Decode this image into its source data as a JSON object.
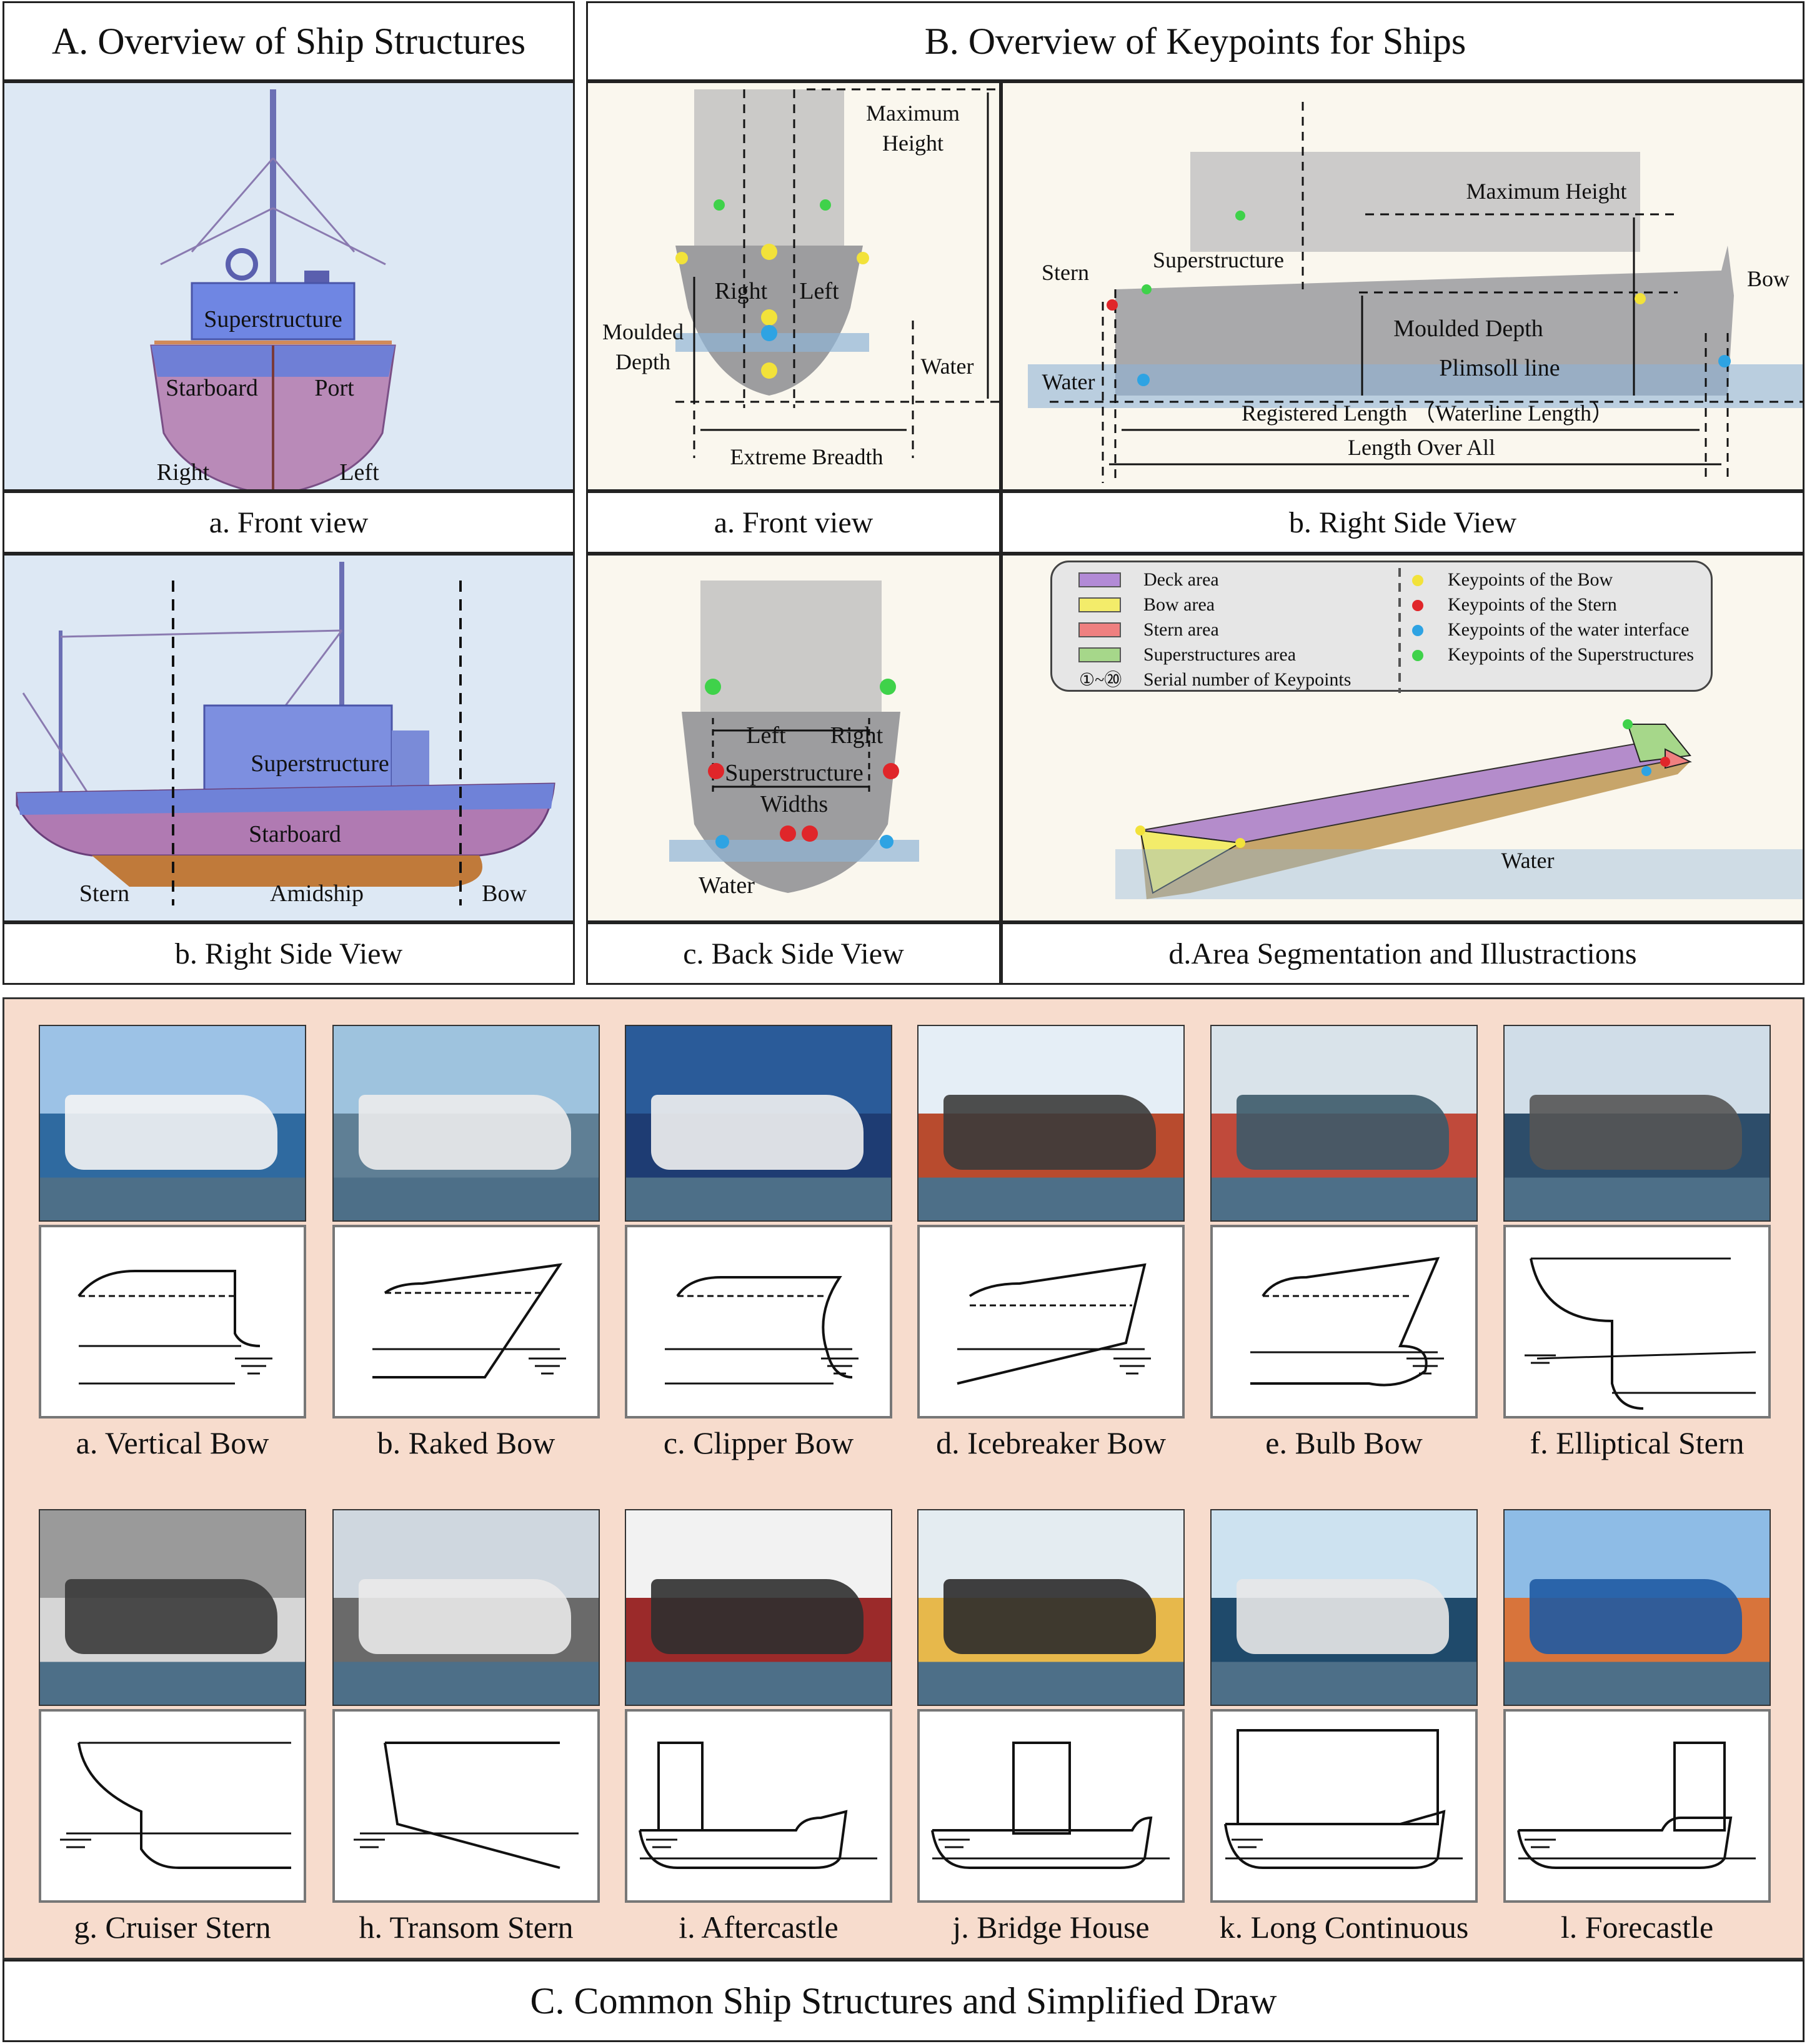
{
  "section_a": {
    "title": "A. Overview of Ship Structures",
    "front": {
      "superstructure": "Superstructure",
      "starboard": "Starboard",
      "port": "Port",
      "right": "Right",
      "left": "Left",
      "caption": "a. Front view"
    },
    "side": {
      "superstructure": "Superstructure",
      "starboard": "Starboard",
      "stern": "Stern",
      "amidship": "Amidship",
      "bow": "Bow",
      "caption": "b. Right Side View"
    }
  },
  "section_b": {
    "title": "B. Overview of Keypoints for Ships",
    "front": {
      "max_height": "Maximum",
      "max_height2": "Height",
      "right": "Right",
      "left": "Left",
      "moulded": "Moulded",
      "depth": "Depth",
      "water": "Water",
      "breadth": "Extreme Breadth",
      "caption": "a. Front view"
    },
    "side": {
      "max_height": "Maximum Height",
      "superstructure": "Superstructure",
      "stern": "Stern",
      "bow": "Bow",
      "moulded": "Moulded Depth",
      "plimsoll": "Plimsoll line",
      "water": "Water",
      "registered": "Registered Length （Waterline Length）",
      "loa": "Length Over All",
      "caption": "b. Right Side View"
    },
    "back": {
      "left": "Left",
      "right": "Right",
      "sw1": "Superstructure",
      "sw2": "Widths",
      "water": "Water",
      "caption": "c. Back Side View"
    },
    "area": {
      "legend": [
        "Deck area",
        "Bow area",
        "Stern area",
        "Superstructures area",
        "Serial number of Keypoints"
      ],
      "legend_serial": "①~⑳",
      "legend_kp": [
        "Keypoints of the Bow",
        "Keypoints of the Stern",
        "Keypoints of the water interface",
        "Keypoints of the Superstructures"
      ],
      "water": "Water",
      "caption": "d.Area Segmentation and Illustractions"
    },
    "colors": {
      "bow": "#f2e23a",
      "stern": "#e0262a",
      "water": "#2ea3e3",
      "super": "#3fd24a",
      "deck": "#b28ad6",
      "bow_area": "#f3ec6a",
      "stern_area": "#ef8080",
      "super_area": "#a6d78a"
    }
  },
  "section_c": {
    "title": "C.  Common Ship Structures and Simplified Draw",
    "row1": [
      "a. Vertical Bow",
      "b. Raked Bow",
      "c. Clipper Bow",
      "d. Icebreaker Bow",
      "e. Bulb Bow",
      "f. Elliptical Stern"
    ],
    "row2": [
      "g. Cruiser Stern",
      "h. Transom Stern",
      "i. Aftercastle",
      "j. Bridge House",
      "k. Long Continuous",
      "l. Forecastle"
    ]
  }
}
